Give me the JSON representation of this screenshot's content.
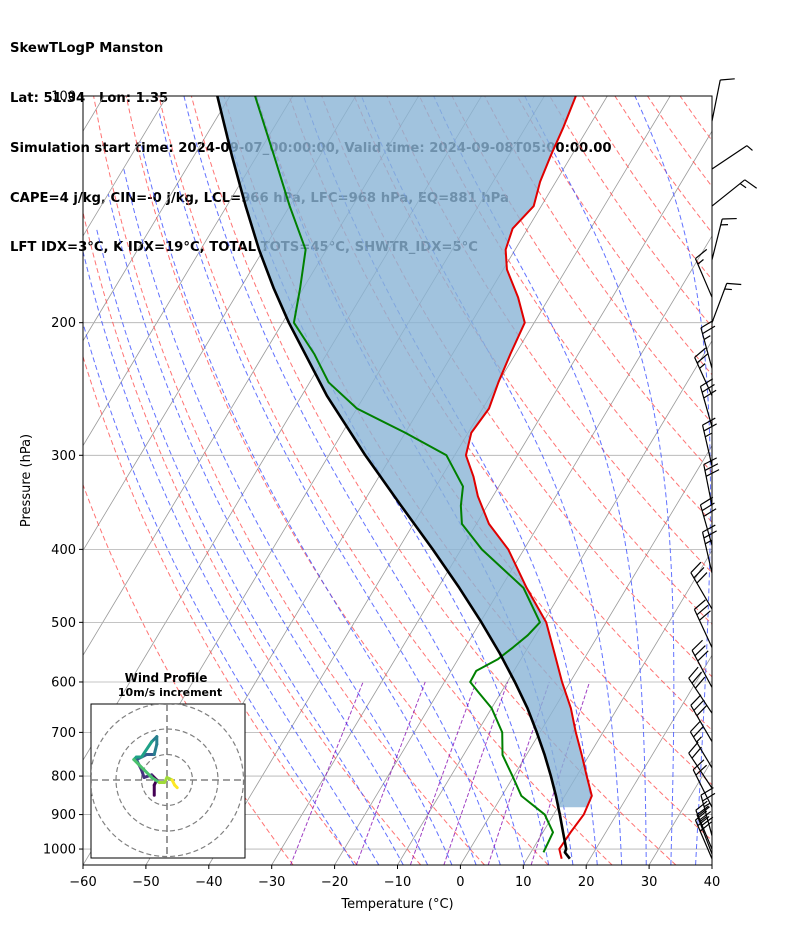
{
  "header": {
    "title": "SkewTLogP Manston",
    "location": "Lat: 51.34   Lon: 1.35",
    "times": "Simulation start time: 2024-09-07_00:00:00, Valid time: 2024-09-08T05:00:00.00",
    "indices1": "CAPE=4 j/kg, CIN=-0 j/kg, LCL=966 hPa, LFC=968 hPa, EQ=881 hPa",
    "indices2": "LFT IDX=3°C, K IDX=19°C, TOTAL TOTS=45°C, SHWTR_IDX=5°C"
  },
  "chart_data": {
    "type": "skewt",
    "xlabel": "Temperature (°C)",
    "ylabel": "Pressure (hPa)",
    "xlim": [
      -60,
      40
    ],
    "ylim": [
      1050,
      100
    ],
    "xticks": [
      -60,
      -50,
      -40,
      -30,
      -20,
      -10,
      0,
      10,
      20,
      30,
      40
    ],
    "xtick_labels": [
      "−60",
      "−50",
      "−40",
      "−30",
      "−20",
      "−10",
      "0",
      "10",
      "20",
      "30",
      "40"
    ],
    "yticks": [
      1000,
      900,
      800,
      700,
      600,
      500,
      400,
      300,
      200,
      100
    ],
    "ytick_labels": [
      "1000",
      "900",
      "800",
      "700",
      "600",
      "500",
      "400",
      "300",
      "200",
      "100"
    ],
    "colors": {
      "temperature": "#e00000",
      "dewpoint": "#008000",
      "parcel": "#000000",
      "cape_fill": "#8ab4d6",
      "dry_adiabat": "#ff5050",
      "moist_adiabat": "#3b4fff",
      "mixing_ratio": "#8000b0",
      "isotherm": "#9a9a9a"
    },
    "series": [
      {
        "name": "temperature",
        "p": [
          1030,
          1000,
          950,
          900,
          850,
          800,
          750,
          700,
          650,
          600,
          550,
          500,
          450,
          400,
          370,
          340,
          320,
          300,
          280,
          260,
          240,
          220,
          200,
          185,
          170,
          160,
          150,
          140,
          130,
          120,
          110,
          100
        ],
        "t": [
          15.5,
          14.2,
          14.4,
          14.8,
          14.3,
          11.6,
          8.8,
          5.7,
          2.6,
          -1.3,
          -5.2,
          -9.5,
          -15.9,
          -22.5,
          -28.0,
          -32.4,
          -35.0,
          -38.2,
          -39.5,
          -39.0,
          -40.0,
          -40.8,
          -41.5,
          -45.0,
          -49.4,
          -51.5,
          -52.4,
          -51.2,
          -52.5,
          -53.3,
          -54.0,
          -55.0
        ]
      },
      {
        "name": "dewpoint",
        "p": [
          1010,
          950,
          900,
          850,
          800,
          750,
          700,
          650,
          620,
          600,
          580,
          560,
          540,
          520,
          500,
          450,
          400,
          370,
          350,
          330,
          300,
          280,
          260,
          240,
          220,
          200,
          180,
          160,
          140,
          120,
          100
        ],
        "t": [
          12.0,
          11.6,
          8.6,
          3.1,
          -0.2,
          -3.8,
          -6.0,
          -10.0,
          -13.5,
          -15.9,
          -16.0,
          -13.7,
          -12.4,
          -11.2,
          -10.5,
          -16.4,
          -26.7,
          -32.3,
          -34.2,
          -35.7,
          -41.3,
          -50.0,
          -60.0,
          -67.0,
          -72.0,
          -78.2,
          -80.5,
          -83.3,
          -90.0,
          -97.3,
          -106.0
        ]
      },
      {
        "name": "parcel",
        "p": [
          1030,
          1010,
          1000,
          950,
          900,
          850,
          800,
          750,
          700,
          650,
          600,
          550,
          500,
          450,
          400,
          350,
          300,
          250,
          200,
          180,
          160,
          140,
          120,
          100
        ],
        "t": [
          16.8,
          15.4,
          15.3,
          13.2,
          11.0,
          8.6,
          5.9,
          2.9,
          -0.5,
          -4.3,
          -8.8,
          -13.9,
          -19.8,
          -26.6,
          -34.5,
          -43.7,
          -54.2,
          -66.0,
          -79.0,
          -84.7,
          -90.7,
          -97.0,
          -104.0,
          -112.0
        ]
      }
    ]
  },
  "wind_profile": {
    "title": "Wind Profile",
    "subtitle": "10m/s increment",
    "rings_ms": [
      10,
      20,
      30
    ],
    "hodograph_uv": [
      [
        -5,
        -6
      ],
      [
        -5,
        -2
      ],
      [
        -4,
        0
      ],
      [
        -6,
        2
      ],
      [
        -9,
        1
      ],
      [
        -10,
        4
      ],
      [
        -11,
        6
      ],
      [
        -12,
        8
      ],
      [
        -8,
        10
      ],
      [
        -5,
        10
      ],
      [
        -4,
        14
      ],
      [
        -4,
        17
      ],
      [
        -6,
        15
      ],
      [
        -10,
        9
      ],
      [
        -12,
        9
      ],
      [
        -13,
        8
      ],
      [
        -9,
        4
      ],
      [
        -6,
        1
      ],
      [
        -3,
        -1
      ],
      [
        -1,
        -1
      ],
      [
        0,
        1
      ],
      [
        2,
        0
      ],
      [
        3,
        -2
      ],
      [
        4,
        -3
      ]
    ]
  },
  "wind_barbs": [
    {
      "p": 1030,
      "u": 6,
      "v": -14
    },
    {
      "p": 1015,
      "u": 5,
      "v": -13
    },
    {
      "p": 1000,
      "u": 5,
      "v": -12
    },
    {
      "p": 960,
      "u": 3,
      "v": -11
    },
    {
      "p": 880,
      "u": 5,
      "v": -10
    },
    {
      "p": 830,
      "u": 6,
      "v": -9
    },
    {
      "p": 780,
      "u": 6,
      "v": -10
    },
    {
      "p": 720,
      "u": 7,
      "v": -12
    },
    {
      "p": 660,
      "u": 8,
      "v": -12
    },
    {
      "p": 610,
      "u": 7,
      "v": -13
    },
    {
      "p": 540,
      "u": 6,
      "v": -13
    },
    {
      "p": 480,
      "u": 7,
      "v": -12
    },
    {
      "p": 430,
      "u": 3,
      "v": -13
    },
    {
      "p": 395,
      "u": 4,
      "v": -14
    },
    {
      "p": 350,
      "u": 3,
      "v": -15
    },
    {
      "p": 310,
      "u": 3,
      "v": -13
    },
    {
      "p": 275,
      "u": 4,
      "v": -14
    },
    {
      "p": 250,
      "u": 5,
      "v": -11
    },
    {
      "p": 230,
      "u": 3,
      "v": -11
    },
    {
      "p": 200,
      "u": -3,
      "v": -8
    },
    {
      "p": 185,
      "u": 3,
      "v": -7
    },
    {
      "p": 165,
      "u": -2,
      "v": -8
    },
    {
      "p": 140,
      "u": -5,
      "v": -4
    },
    {
      "p": 125,
      "u": -3,
      "v": -2
    },
    {
      "p": 108,
      "u": -1,
      "v": -5
    }
  ]
}
